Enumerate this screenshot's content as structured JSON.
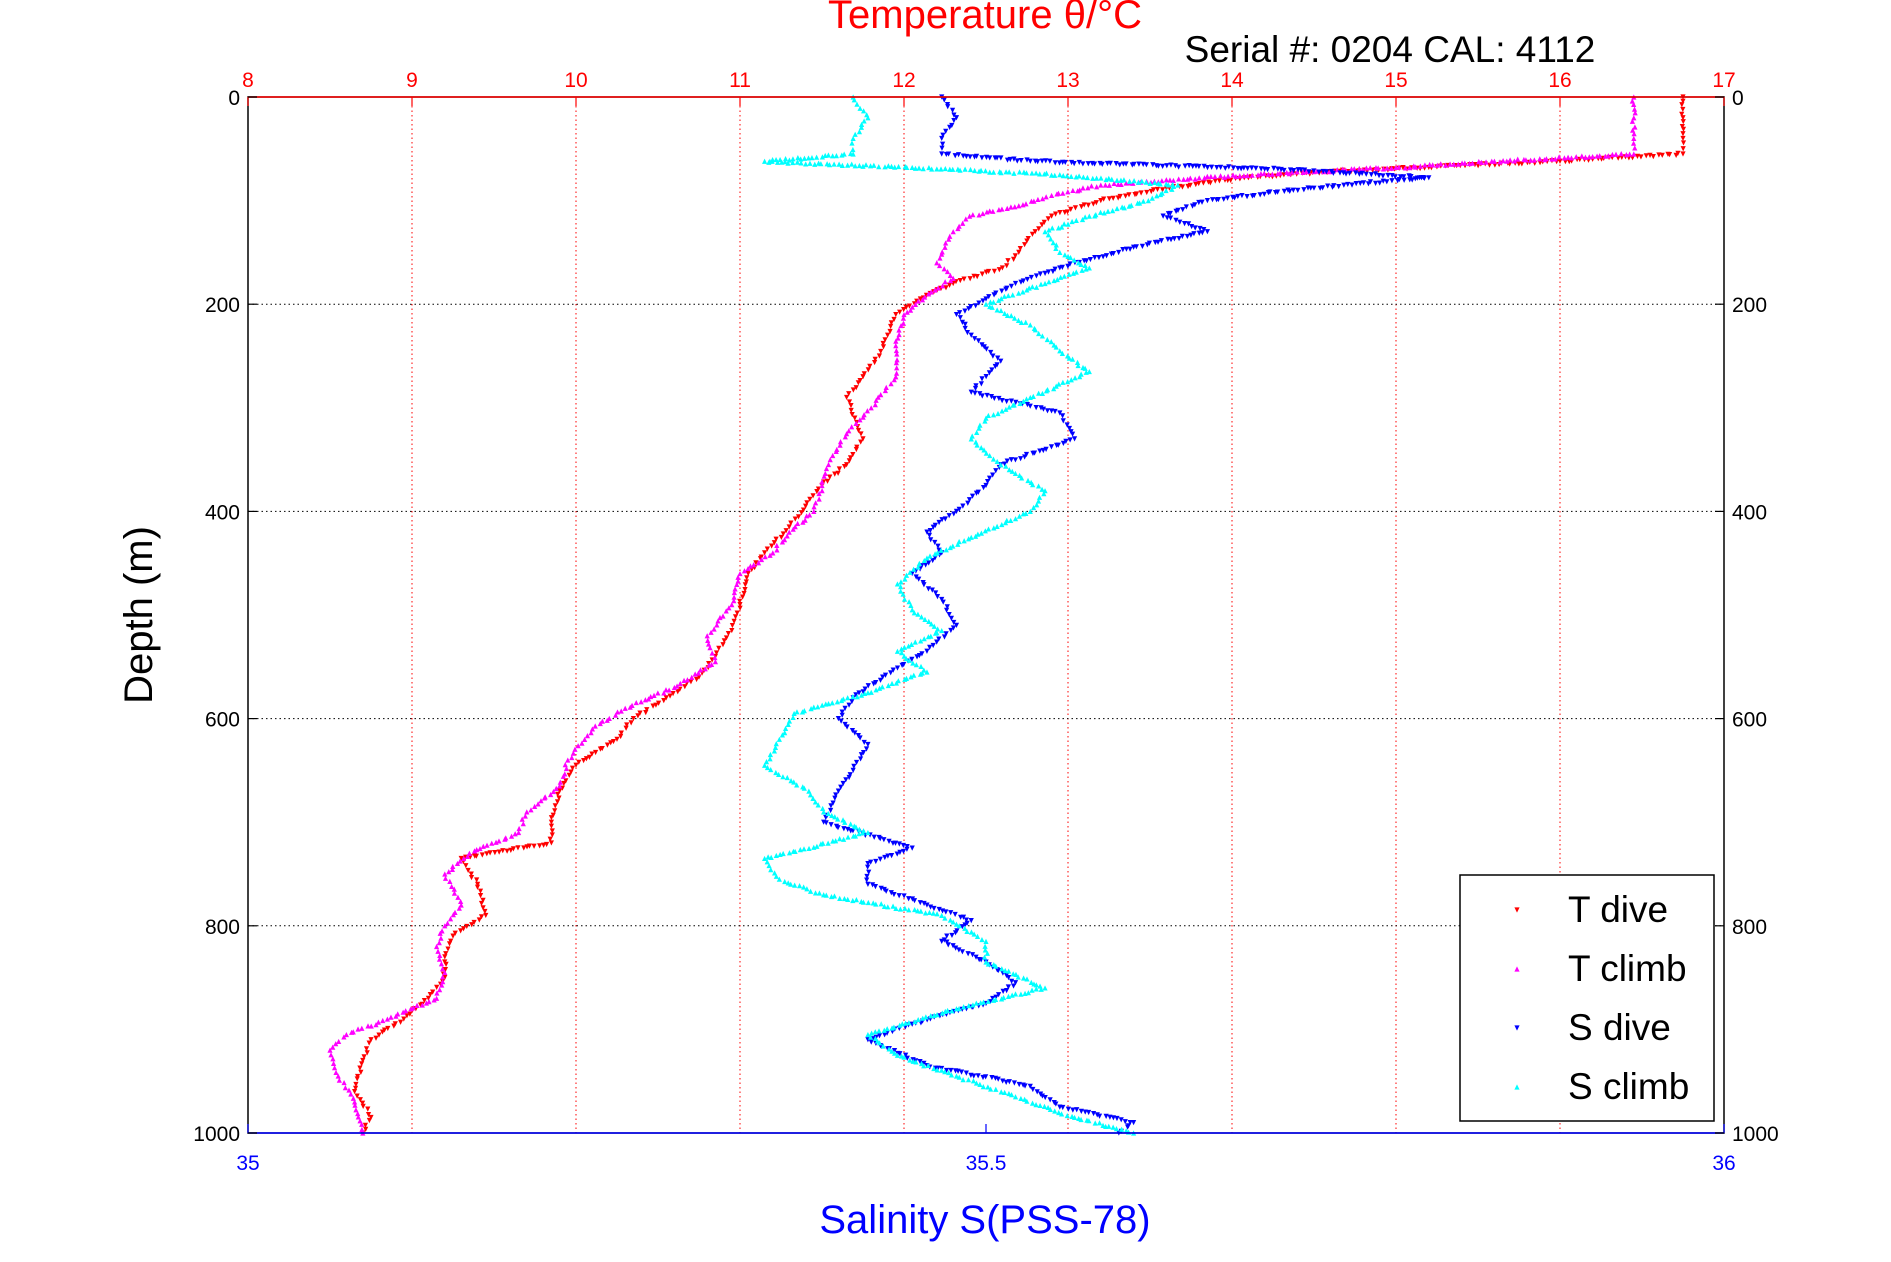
{
  "chart_data": {
    "type": "scatter",
    "top_axis": {
      "title": "Temperature θ/°C",
      "range": [
        8,
        17
      ],
      "ticks": [
        "8",
        "9",
        "10",
        "11",
        "12",
        "13",
        "14",
        "15",
        "16",
        "17"
      ],
      "color": "#ff0000",
      "grid": true
    },
    "bottom_axis": {
      "title": "Salinity S(PSS-78)",
      "range": [
        35,
        36
      ],
      "ticks": [
        "35",
        "35.5",
        "36"
      ],
      "color": "#0000ff"
    },
    "y_axis": {
      "title": "Depth (m)",
      "range": [
        0,
        1000
      ],
      "reversed": true,
      "ticks": [
        "0",
        "200",
        "400",
        "600",
        "800",
        "1000"
      ],
      "grid": true
    },
    "annotation": "Serial #: 0204  CAL: 4112",
    "legend": {
      "placement": "bottom-right"
    },
    "series": [
      {
        "name": "T dive",
        "axis": "temperature",
        "color": "#ff0000",
        "marker": "triangle-down",
        "points": [
          [
            16.75,
            0
          ],
          [
            16.75,
            20
          ],
          [
            16.75,
            40
          ],
          [
            16.75,
            55
          ],
          [
            16.0,
            62
          ],
          [
            15.2,
            68
          ],
          [
            14.6,
            72
          ],
          [
            14.1,
            78
          ],
          [
            13.6,
            88
          ],
          [
            13.2,
            100
          ],
          [
            12.9,
            115
          ],
          [
            12.8,
            130
          ],
          [
            12.7,
            150
          ],
          [
            12.6,
            165
          ],
          [
            12.3,
            180
          ],
          [
            12.1,
            195
          ],
          [
            11.95,
            210
          ],
          [
            11.9,
            230
          ],
          [
            11.85,
            250
          ],
          [
            11.75,
            270
          ],
          [
            11.65,
            290
          ],
          [
            11.7,
            310
          ],
          [
            11.75,
            330
          ],
          [
            11.65,
            355
          ],
          [
            11.5,
            375
          ],
          [
            11.4,
            395
          ],
          [
            11.3,
            415
          ],
          [
            11.15,
            440
          ],
          [
            11.05,
            460
          ],
          [
            11.0,
            490
          ],
          [
            10.95,
            515
          ],
          [
            10.85,
            540
          ],
          [
            10.75,
            560
          ],
          [
            10.55,
            580
          ],
          [
            10.35,
            600
          ],
          [
            10.25,
            620
          ],
          [
            10.0,
            645
          ],
          [
            9.9,
            670
          ],
          [
            9.85,
            700
          ],
          [
            9.85,
            720
          ],
          [
            9.3,
            735
          ],
          [
            9.4,
            760
          ],
          [
            9.45,
            790
          ],
          [
            9.25,
            810
          ],
          [
            9.2,
            830
          ],
          [
            9.2,
            850
          ],
          [
            9.1,
            870
          ],
          [
            8.95,
            890
          ],
          [
            8.75,
            910
          ],
          [
            8.7,
            930
          ],
          [
            8.65,
            960
          ],
          [
            8.75,
            985
          ],
          [
            8.7,
            1000
          ]
        ]
      },
      {
        "name": "T climb",
        "axis": "temperature",
        "color": "#ff00ff",
        "marker": "triangle-up",
        "points": [
          [
            16.45,
            0
          ],
          [
            16.45,
            20
          ],
          [
            16.45,
            40
          ],
          [
            16.45,
            55
          ],
          [
            15.6,
            62
          ],
          [
            15.0,
            68
          ],
          [
            14.5,
            72
          ],
          [
            13.8,
            78
          ],
          [
            13.2,
            85
          ],
          [
            12.9,
            95
          ],
          [
            12.7,
            105
          ],
          [
            12.4,
            115
          ],
          [
            12.3,
            130
          ],
          [
            12.25,
            145
          ],
          [
            12.2,
            160
          ],
          [
            12.3,
            175
          ],
          [
            12.15,
            190
          ],
          [
            12.0,
            210
          ],
          [
            11.95,
            240
          ],
          [
            11.95,
            270
          ],
          [
            11.8,
            300
          ],
          [
            11.65,
            325
          ],
          [
            11.55,
            350
          ],
          [
            11.5,
            375
          ],
          [
            11.45,
            400
          ],
          [
            11.3,
            420
          ],
          [
            11.2,
            440
          ],
          [
            11.0,
            460
          ],
          [
            10.95,
            490
          ],
          [
            10.8,
            520
          ],
          [
            10.85,
            545
          ],
          [
            10.6,
            570
          ],
          [
            10.3,
            590
          ],
          [
            10.1,
            610
          ],
          [
            9.95,
            640
          ],
          [
            9.9,
            665
          ],
          [
            9.7,
            690
          ],
          [
            9.65,
            710
          ],
          [
            9.35,
            730
          ],
          [
            9.2,
            750
          ],
          [
            9.3,
            780
          ],
          [
            9.2,
            800
          ],
          [
            9.15,
            820
          ],
          [
            9.2,
            845
          ],
          [
            9.15,
            870
          ],
          [
            8.85,
            890
          ],
          [
            8.6,
            905
          ],
          [
            8.5,
            920
          ],
          [
            8.55,
            945
          ],
          [
            8.65,
            970
          ],
          [
            8.7,
            1000
          ]
        ]
      },
      {
        "name": "S dive",
        "axis": "salinity",
        "color": "#0000ff",
        "marker": "triangle-down",
        "points": [
          [
            35.47,
            0
          ],
          [
            35.48,
            20
          ],
          [
            35.47,
            40
          ],
          [
            35.47,
            55
          ],
          [
            35.53,
            62
          ],
          [
            35.7,
            70
          ],
          [
            35.8,
            78
          ],
          [
            35.72,
            88
          ],
          [
            35.65,
            100
          ],
          [
            35.62,
            115
          ],
          [
            35.65,
            130
          ],
          [
            35.6,
            145
          ],
          [
            35.55,
            165
          ],
          [
            35.52,
            180
          ],
          [
            35.5,
            195
          ],
          [
            35.48,
            210
          ],
          [
            35.49,
            230
          ],
          [
            35.51,
            255
          ],
          [
            35.49,
            285
          ],
          [
            35.55,
            305
          ],
          [
            35.56,
            330
          ],
          [
            35.51,
            355
          ],
          [
            35.5,
            375
          ],
          [
            35.48,
            400
          ],
          [
            35.46,
            420
          ],
          [
            35.47,
            440
          ],
          [
            35.45,
            460
          ],
          [
            35.47,
            485
          ],
          [
            35.48,
            510
          ],
          [
            35.46,
            535
          ],
          [
            35.43,
            560
          ],
          [
            35.41,
            580
          ],
          [
            35.4,
            600
          ],
          [
            35.42,
            625
          ],
          [
            35.41,
            650
          ],
          [
            35.4,
            670
          ],
          [
            35.39,
            700
          ],
          [
            35.45,
            725
          ],
          [
            35.42,
            740
          ],
          [
            35.42,
            760
          ],
          [
            35.46,
            780
          ],
          [
            35.49,
            795
          ],
          [
            35.47,
            815
          ],
          [
            35.5,
            835
          ],
          [
            35.52,
            855
          ],
          [
            35.5,
            875
          ],
          [
            35.45,
            895
          ],
          [
            35.42,
            910
          ],
          [
            35.46,
            935
          ],
          [
            35.53,
            955
          ],
          [
            35.55,
            975
          ],
          [
            35.6,
            990
          ],
          [
            35.59,
            1000
          ]
        ]
      },
      {
        "name": "S climb",
        "axis": "salinity",
        "color": "#00ffff",
        "marker": "triangle-up",
        "points": [
          [
            35.41,
            0
          ],
          [
            35.42,
            20
          ],
          [
            35.41,
            40
          ],
          [
            35.41,
            55
          ],
          [
            35.35,
            62
          ],
          [
            35.45,
            68
          ],
          [
            35.55,
            75
          ],
          [
            35.63,
            85
          ],
          [
            35.61,
            100
          ],
          [
            35.57,
            115
          ],
          [
            35.54,
            130
          ],
          [
            35.55,
            150
          ],
          [
            35.57,
            165
          ],
          [
            35.54,
            180
          ],
          [
            35.5,
            200
          ],
          [
            35.53,
            220
          ],
          [
            35.55,
            245
          ],
          [
            35.57,
            265
          ],
          [
            35.53,
            290
          ],
          [
            35.5,
            310
          ],
          [
            35.49,
            330
          ],
          [
            35.51,
            355
          ],
          [
            35.54,
            380
          ],
          [
            35.53,
            400
          ],
          [
            35.49,
            425
          ],
          [
            35.46,
            445
          ],
          [
            35.44,
            470
          ],
          [
            35.45,
            495
          ],
          [
            35.47,
            515
          ],
          [
            35.44,
            535
          ],
          [
            35.46,
            555
          ],
          [
            35.42,
            575
          ],
          [
            35.37,
            595
          ],
          [
            35.36,
            620
          ],
          [
            35.35,
            645
          ],
          [
            35.38,
            670
          ],
          [
            35.39,
            690
          ],
          [
            35.42,
            710
          ],
          [
            35.35,
            735
          ],
          [
            35.36,
            755
          ],
          [
            35.39,
            770
          ],
          [
            35.47,
            790
          ],
          [
            35.5,
            815
          ],
          [
            35.5,
            835
          ],
          [
            35.54,
            860
          ],
          [
            35.48,
            880
          ],
          [
            35.42,
            905
          ],
          [
            35.44,
            925
          ],
          [
            35.48,
            945
          ],
          [
            35.52,
            965
          ],
          [
            35.56,
            985
          ],
          [
            35.6,
            1000
          ]
        ]
      }
    ]
  }
}
